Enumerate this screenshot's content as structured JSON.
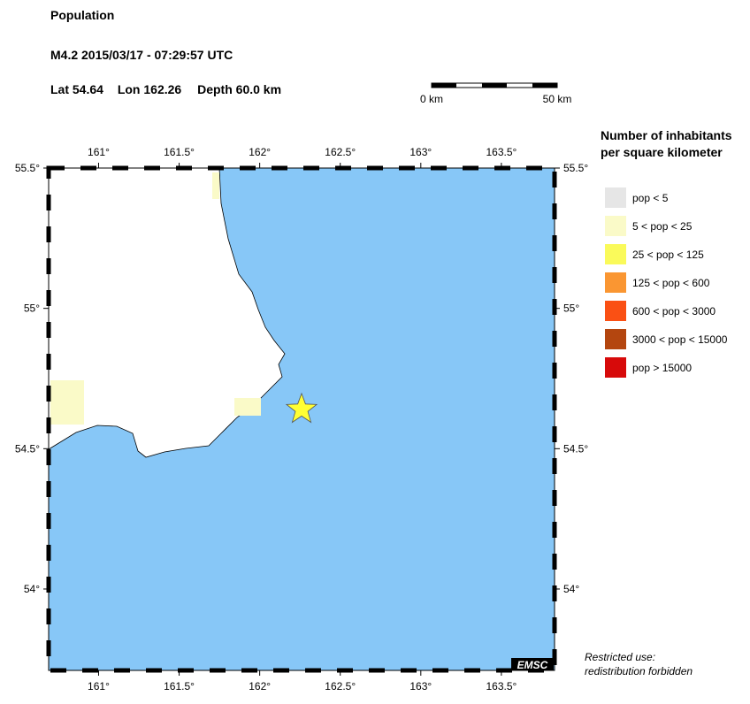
{
  "header": {
    "title": "Population",
    "event": "M4.2  2015/03/17 - 07:29:57 UTC",
    "lat_label": "Lat",
    "lon_label": "Lon",
    "depth_label": "Depth",
    "depth": "60.0 km"
  },
  "epicenter": {
    "lat": 54.64,
    "lon": 162.26
  },
  "scale_bar": {
    "start": "0 km",
    "end": "50 km"
  },
  "map": {
    "lonlim": [
      160.69,
      163.83
    ],
    "latlim": [
      53.71,
      55.5
    ],
    "xticks": [
      {
        "value": 161,
        "label": "161°"
      },
      {
        "value": 161.5,
        "label": "161.5°"
      },
      {
        "value": 162,
        "label": "162°"
      },
      {
        "value": 162.5,
        "label": "162.5°"
      },
      {
        "value": 163,
        "label": "163°"
      },
      {
        "value": 163.5,
        "label": "163.5°"
      }
    ],
    "yticks": [
      {
        "value": 54,
        "label": "54°"
      },
      {
        "value": 54.5,
        "label": "54.5°"
      },
      {
        "value": 55,
        "label": "55°"
      },
      {
        "value": 55.5,
        "label": "55.5°"
      }
    ],
    "logo": "EMSC"
  },
  "legend": {
    "title_line1": "Number of inhabitants",
    "title_line2": "per square kilometer",
    "items": [
      {
        "label": "pop < 5",
        "color": "#e6e6e6"
      },
      {
        "label": "5 < pop < 25",
        "color": "#fafac8"
      },
      {
        "label": "25 < pop < 125",
        "color": "#fafa5a"
      },
      {
        "label": "125 < pop < 600",
        "color": "#fa9632"
      },
      {
        "label": "600 < pop < 3000",
        "color": "#fa5014"
      },
      {
        "label": "3000 < pop < 15000",
        "color": "#b4460f"
      },
      {
        "label": "pop > 15000",
        "color": "#d70a0a"
      }
    ]
  },
  "notice": {
    "line1": "Restricted use:",
    "line2": "redistribution forbidden"
  }
}
